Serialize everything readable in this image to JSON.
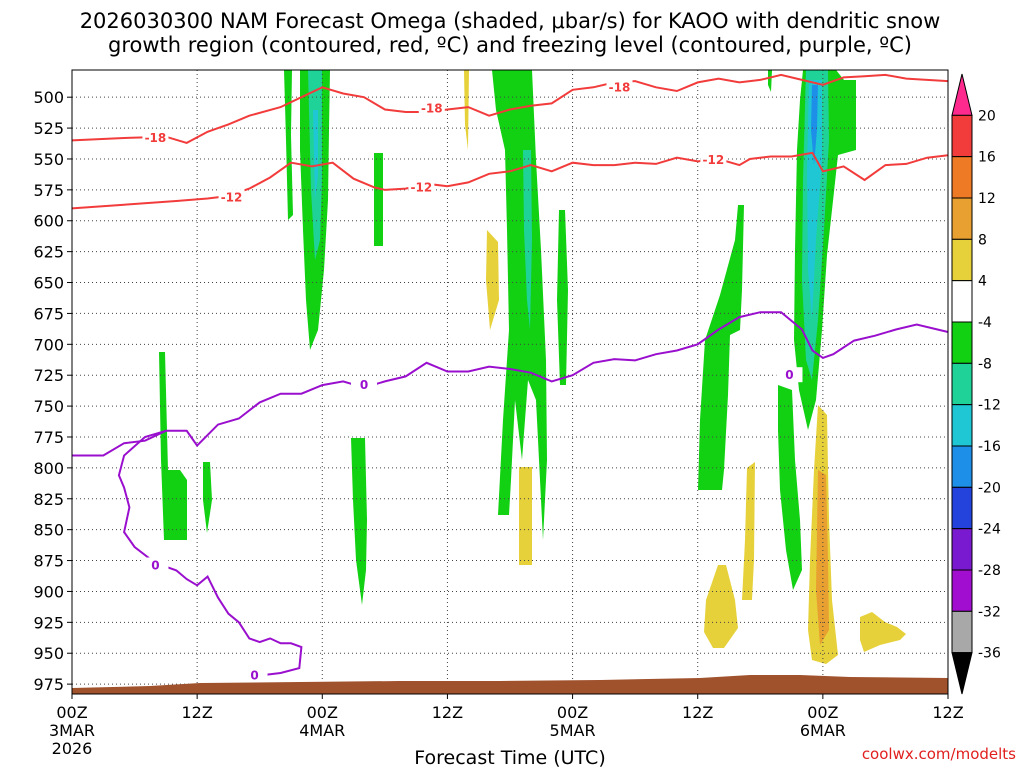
{
  "chart_data": {
    "type": "heatmap",
    "title_line1": "2026030300 NAM Forecast Omega (shaded, μbar/s) for KAOO with dendritic snow",
    "title_line2": "growth region (contoured, red, ºC) and freezing level (contoured, purple, ºC)",
    "xlabel": "Forecast Time (UTC)",
    "ylabel": "",
    "credit": "coolwx.com/modelts",
    "x_range_hours": [
      0,
      84
    ],
    "y_range_hPa": [
      478,
      983
    ],
    "y_ticks": [
      "500",
      "525",
      "550",
      "575",
      "600",
      "625",
      "650",
      "675",
      "700",
      "725",
      "750",
      "775",
      "800",
      "825",
      "850",
      "875",
      "900",
      "925",
      "950",
      "975"
    ],
    "x_ticks": [
      {
        "hour": 0,
        "label": "00Z",
        "date": "3MAR",
        "year": "2026"
      },
      {
        "hour": 12,
        "label": "12Z",
        "date": "",
        "year": ""
      },
      {
        "hour": 24,
        "label": "00Z",
        "date": "4MAR",
        "year": ""
      },
      {
        "hour": 36,
        "label": "12Z",
        "date": "",
        "year": ""
      },
      {
        "hour": 48,
        "label": "00Z",
        "date": "5MAR",
        "year": ""
      },
      {
        "hour": 60,
        "label": "12Z",
        "date": "",
        "year": ""
      },
      {
        "hour": 72,
        "label": "00Z",
        "date": "6MAR",
        "year": ""
      },
      {
        "hour": 84,
        "label": "12Z",
        "date": "",
        "year": ""
      }
    ],
    "colorbar": {
      "unit": "μbar/s",
      "labels": [
        "20",
        "16",
        "12",
        "8",
        "4",
        "-4",
        "-8",
        "-12",
        "-16",
        "-20",
        "-24",
        "-28",
        "-32",
        "-36"
      ],
      "colors": [
        "#ff2a8e",
        "#f23b3b",
        "#ef7a26",
        "#e8a030",
        "#e6d13a",
        "#ffffff",
        "#12d012",
        "#1fd398",
        "#1ec7d3",
        "#1e8fe8",
        "#2443dc",
        "#7a1ad0",
        "#a20ed0",
        "#a8a8a8",
        "#000000"
      ]
    },
    "contours": {
      "dendritic_red": [
        {
          "level": -18,
          "label": "-18",
          "color": "#f23b3b",
          "points": [
            [
              0,
              535
            ],
            [
              5,
              533
            ],
            [
              9,
              532
            ],
            [
              11,
              537
            ],
            [
              13,
              528
            ],
            [
              15,
              522
            ],
            [
              17,
              515
            ],
            [
              20,
              508
            ],
            [
              22,
              500
            ],
            [
              24,
              492
            ],
            [
              26,
              497
            ],
            [
              28,
              500
            ],
            [
              30,
              510
            ],
            [
              32,
              512
            ],
            [
              34,
              512
            ],
            [
              36,
              510
            ],
            [
              38,
              508
            ],
            [
              40,
              515
            ],
            [
              42,
              510
            ],
            [
              44,
              507
            ],
            [
              46,
              505
            ],
            [
              48,
              494
            ],
            [
              50,
              492
            ],
            [
              52,
              488
            ],
            [
              54,
              487
            ],
            [
              56,
              492
            ],
            [
              58,
              495
            ],
            [
              60,
              488
            ],
            [
              62,
              485
            ],
            [
              64,
              488
            ],
            [
              66,
              486
            ],
            [
              68,
              482
            ],
            [
              70,
              486
            ],
            [
              72,
              490
            ],
            [
              73,
              487
            ],
            [
              74,
              484
            ],
            [
              76,
              483
            ],
            [
              78,
              482
            ],
            [
              80,
              485
            ],
            [
              82,
              486
            ],
            [
              84,
              487
            ]
          ],
          "labels": [
            {
              "hour": 8,
              "hPa": 533
            },
            {
              "hour": 34.5,
              "hPa": 509
            },
            {
              "hour": 52.5,
              "hPa": 492
            }
          ]
        },
        {
          "level": -12,
          "label": "-12",
          "color": "#f23b3b",
          "points": [
            [
              0,
              590
            ],
            [
              5,
              587
            ],
            [
              10,
              584
            ],
            [
              13,
              582
            ],
            [
              15,
              580
            ],
            [
              17,
              574
            ],
            [
              19,
              565
            ],
            [
              21,
              553
            ],
            [
              23,
              556
            ],
            [
              25,
              553
            ],
            [
              27,
              566
            ],
            [
              29,
              573
            ],
            [
              30,
              575
            ],
            [
              32,
              574
            ],
            [
              34,
              570
            ],
            [
              36,
              572
            ],
            [
              38,
              569
            ],
            [
              40,
              562
            ],
            [
              42,
              560
            ],
            [
              44,
              555
            ],
            [
              46,
              560
            ],
            [
              48,
              553
            ],
            [
              50,
              555
            ],
            [
              52,
              555
            ],
            [
              54,
              553
            ],
            [
              56,
              554
            ],
            [
              58,
              549
            ],
            [
              60,
              552
            ],
            [
              62,
              550
            ],
            [
              64,
              555
            ],
            [
              65,
              550
            ],
            [
              67,
              548
            ],
            [
              69,
              548
            ],
            [
              71,
              545
            ],
            [
              72,
              560
            ],
            [
              74,
              556
            ],
            [
              76,
              567
            ],
            [
              78,
              555
            ],
            [
              80,
              554
            ],
            [
              82,
              549
            ],
            [
              84,
              547
            ]
          ],
          "labels": [
            {
              "hour": 15.3,
              "hPa": 581
            },
            {
              "hour": 33.5,
              "hPa": 573
            },
            {
              "hour": 61.5,
              "hPa": 551
            }
          ]
        }
      ],
      "freezing_purple": [
        {
          "level": 0,
          "label": "0",
          "color": "#9a0fce",
          "points": [
            [
              0,
              790
            ],
            [
              3,
              790
            ],
            [
              5,
              780
            ],
            [
              7,
              778
            ],
            [
              9,
              770
            ],
            [
              11,
              770
            ],
            [
              12,
              782
            ],
            [
              14,
              765
            ],
            [
              16,
              760
            ],
            [
              18,
              747
            ],
            [
              20,
              740
            ],
            [
              22,
              740
            ],
            [
              24,
              733
            ],
            [
              26,
              730
            ],
            [
              28,
              735
            ],
            [
              30,
              730
            ],
            [
              32,
              726
            ],
            [
              34,
              715
            ],
            [
              36,
              722
            ],
            [
              38,
              722
            ],
            [
              40,
              718
            ],
            [
              42,
              720
            ],
            [
              44,
              723
            ],
            [
              46,
              730
            ],
            [
              48,
              725
            ],
            [
              50,
              715
            ],
            [
              52,
              712
            ],
            [
              54,
              713
            ],
            [
              56,
              708
            ],
            [
              58,
              705
            ],
            [
              60,
              700
            ],
            [
              62,
              688
            ],
            [
              64,
              678
            ],
            [
              66,
              674
            ],
            [
              68,
              674
            ],
            [
              70,
              688
            ],
            [
              71,
              705
            ],
            [
              72,
              711
            ],
            [
              73,
              708
            ],
            [
              75,
              697
            ],
            [
              77,
              693
            ],
            [
              79,
              688
            ],
            [
              81,
              684
            ],
            [
              84,
              690
            ]
          ],
          "labels": [
            {
              "hour": 28,
              "hPa": 733
            },
            {
              "hour": 68.8,
              "hPa": 725
            }
          ]
        },
        {
          "level": 0,
          "label": "0",
          "color": "#9a0fce",
          "points": [
            [
              9,
              770
            ],
            [
              7,
              775
            ],
            [
              5,
              790
            ],
            [
              4.5,
              806
            ],
            [
              5,
              816
            ],
            [
              5.5,
              832
            ],
            [
              5,
              852
            ],
            [
              6,
              864
            ],
            [
              8,
              877
            ],
            [
              10,
              883
            ],
            [
              11,
              890
            ],
            [
              12,
              895
            ],
            [
              13,
              888
            ],
            [
              14,
              905
            ],
            [
              15,
              918
            ],
            [
              16,
              925
            ],
            [
              17,
              938
            ],
            [
              18,
              941
            ],
            [
              19,
              938
            ],
            [
              20,
              942
            ],
            [
              21,
              942
            ],
            [
              22,
              945
            ],
            [
              21.8,
              962
            ],
            [
              20,
              966
            ],
            [
              18,
              968
            ],
            [
              16.5,
              970
            ]
          ],
          "labels": [
            {
              "hour": 8,
              "hPa": 879
            },
            {
              "hour": 17.5,
              "hPa": 968
            }
          ]
        }
      ]
    }
  }
}
